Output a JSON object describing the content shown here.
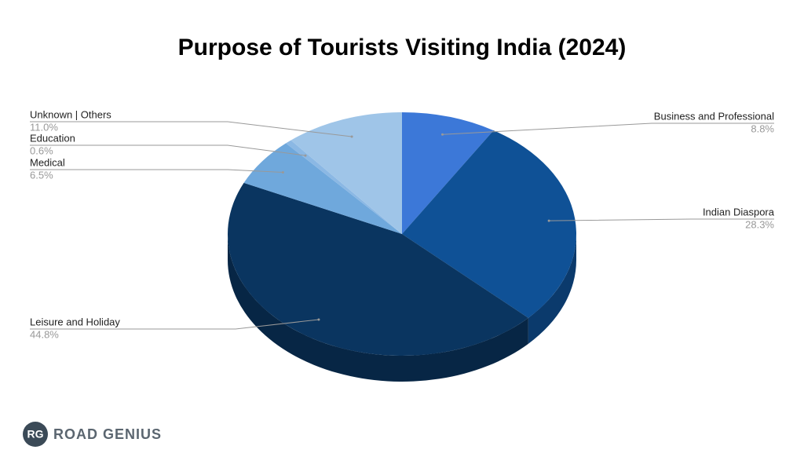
{
  "chart_data": {
    "type": "pie3d",
    "title": "Purpose of Tourists Visiting India (2024)",
    "categories": [
      "Business and Professional",
      "Indian Diaspora",
      "Leisure and Holiday",
      "Medical",
      "Education",
      "Unknown | Others"
    ],
    "values": [
      8.8,
      28.3,
      44.8,
      6.5,
      0.6,
      11.0
    ],
    "value_labels": [
      "8.8%",
      "28.3%",
      "44.8%",
      "6.5%",
      "0.6%",
      "11.0%"
    ],
    "colors": [
      "#3c78d8",
      "#0f5196",
      "#0a3560",
      "#6fa8dc",
      "#8bb8e4",
      "#9fc5e8"
    ]
  },
  "logo": {
    "initials": "RG",
    "name": "ROAD GENIUS"
  }
}
